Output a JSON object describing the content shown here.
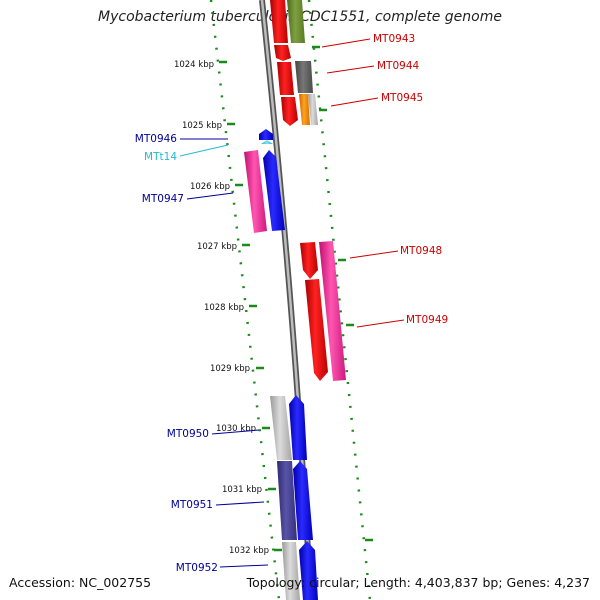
{
  "title": "Mycobacterium tuberculosis CDC1551, complete genome",
  "accession": "Accession: NC_002755",
  "topology": "Topology: circular; Length: 4,403,837 bp; Genes: 4,237",
  "colors": {
    "ruler": "#1a8a1a",
    "backbone": "#777777",
    "red_label": "#cc0000",
    "blue_label": "#000099",
    "cyan_label": "#22bbcc"
  },
  "kbp_ticks": [
    "1024 kbp",
    "1025 kbp",
    "1026 kbp",
    "1027 kbp",
    "1028 kbp",
    "1029 kbp",
    "1030 kbp",
    "1031 kbp",
    "1032 kbp"
  ],
  "gene_labels": [
    {
      "text": "MT0943",
      "color": "red"
    },
    {
      "text": "MT0944",
      "color": "red"
    },
    {
      "text": "MT0945",
      "color": "red"
    },
    {
      "text": "MT0946",
      "color": "blue"
    },
    {
      "text": "MTt14",
      "color": "cyan"
    },
    {
      "text": "MT0947",
      "color": "blue"
    },
    {
      "text": "MT0948",
      "color": "red"
    },
    {
      "text": "MT0949",
      "color": "red"
    },
    {
      "text": "MT0950",
      "color": "blue"
    },
    {
      "text": "MT0951",
      "color": "blue"
    },
    {
      "text": "MT0952",
      "color": "blue"
    }
  ]
}
